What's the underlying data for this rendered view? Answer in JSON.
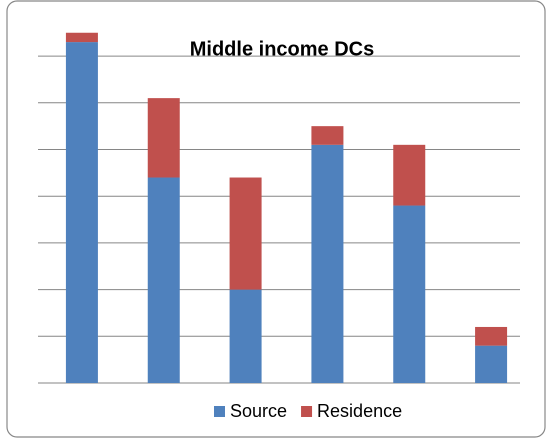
{
  "chart_data": {
    "type": "stacked_bar",
    "title": "Middle income DCs",
    "categories": [
      null,
      null,
      null,
      null,
      null,
      null
    ],
    "series": [
      {
        "name": "Source",
        "color": "#4f81bd",
        "values": [
          7.3,
          4.4,
          2.0,
          5.1,
          3.8,
          0.8
        ]
      },
      {
        "name": "Residence",
        "color": "#c0504d",
        "values": [
          0.2,
          1.7,
          2.4,
          0.4,
          1.3,
          0.4
        ]
      }
    ],
    "ylim": [
      0,
      8
    ],
    "yticks": [
      0,
      1,
      2,
      3,
      4,
      5,
      6,
      7
    ],
    "grid": true,
    "legend": "bottom"
  }
}
